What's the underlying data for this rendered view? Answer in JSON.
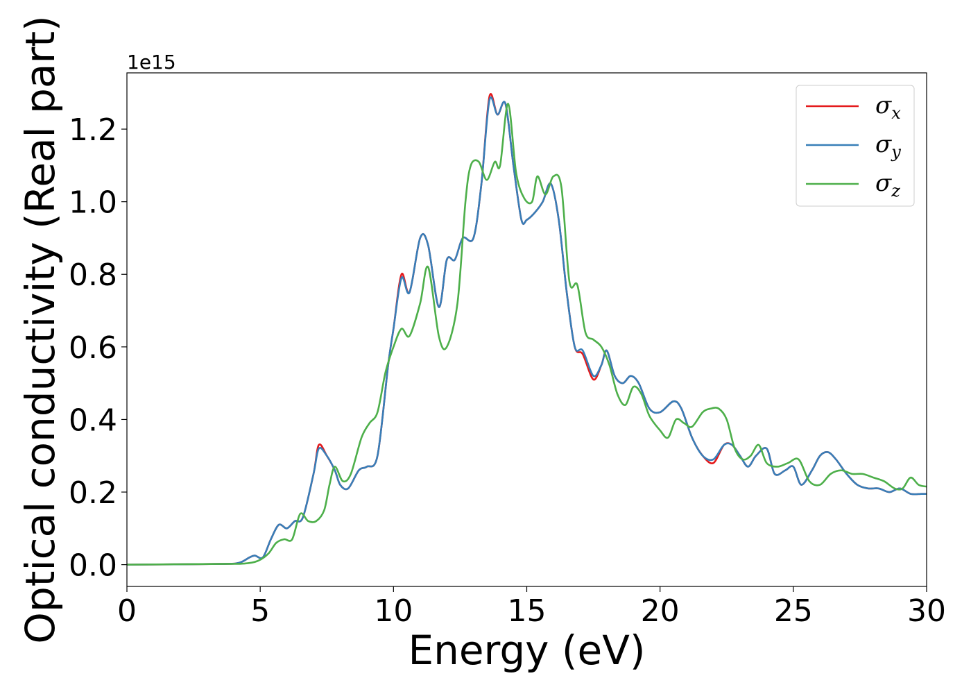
{
  "chart_data": {
    "type": "line",
    "title": "",
    "xlabel": "Energy (eV)",
    "ylabel": "Optical conductivity (Real part)",
    "y_offset_label": "1e15",
    "xlim": [
      0,
      30
    ],
    "ylim": [
      -0.06,
      1.355
    ],
    "x_ticks": [
      0,
      5,
      10,
      15,
      20,
      25,
      30
    ],
    "x_tick_labels": [
      "0",
      "5",
      "10",
      "15",
      "20",
      "25",
      "30"
    ],
    "y_ticks": [
      0.0,
      0.2,
      0.4,
      0.6,
      0.8,
      1.0,
      1.2
    ],
    "y_tick_labels": [
      "0.0",
      "0.2",
      "0.4",
      "0.6",
      "0.8",
      "1.0",
      "1.2"
    ],
    "grid": false,
    "legend_position": "top-right",
    "series": [
      {
        "name": "σ_x",
        "legend_base": "σ",
        "legend_sub": "x",
        "color": "#e41a1c",
        "x": [
          0,
          3.5,
          4.2,
          4.6,
          4.8,
          5.1,
          5.4,
          5.7,
          6.0,
          6.3,
          6.6,
          7.0,
          7.2,
          7.5,
          7.8,
          8.0,
          8.3,
          8.7,
          9.0,
          9.4,
          9.8,
          10.0,
          10.3,
          10.6,
          11.0,
          11.3,
          11.7,
          12.0,
          12.3,
          12.6,
          13.0,
          13.3,
          13.6,
          13.9,
          14.2,
          14.5,
          14.8,
          15.0,
          15.3,
          15.6,
          15.9,
          16.2,
          16.5,
          16.8,
          17.1,
          17.5,
          17.8,
          18.0,
          18.3,
          18.6,
          18.9,
          19.2,
          19.6,
          20.0,
          20.5,
          20.8,
          21.2,
          21.6,
          22.0,
          22.4,
          22.7,
          23.0,
          23.3,
          23.6,
          24.0,
          24.3,
          24.7,
          25.0,
          25.3,
          25.7,
          26.0,
          26.3,
          26.6,
          27.0,
          27.4,
          27.8,
          28.2,
          28.6,
          29.0,
          29.4,
          29.8,
          30.0
        ],
        "values": [
          0.0,
          0.002,
          0.005,
          0.02,
          0.025,
          0.02,
          0.07,
          0.11,
          0.1,
          0.12,
          0.13,
          0.25,
          0.33,
          0.3,
          0.26,
          0.22,
          0.21,
          0.26,
          0.27,
          0.3,
          0.55,
          0.65,
          0.8,
          0.75,
          0.9,
          0.88,
          0.71,
          0.84,
          0.84,
          0.9,
          0.9,
          1.05,
          1.29,
          1.24,
          1.27,
          1.1,
          0.95,
          0.95,
          0.97,
          1.0,
          1.05,
          0.95,
          0.75,
          0.6,
          0.58,
          0.51,
          0.55,
          0.59,
          0.52,
          0.5,
          0.52,
          0.5,
          0.43,
          0.42,
          0.45,
          0.43,
          0.35,
          0.3,
          0.28,
          0.33,
          0.33,
          0.3,
          0.27,
          0.3,
          0.32,
          0.25,
          0.26,
          0.27,
          0.22,
          0.26,
          0.3,
          0.31,
          0.29,
          0.25,
          0.22,
          0.21,
          0.21,
          0.2,
          0.21,
          0.195,
          0.195,
          0.195
        ]
      },
      {
        "name": "σ_y",
        "legend_base": "σ",
        "legend_sub": "y",
        "color": "#377eb8",
        "x": [
          0,
          3.5,
          4.2,
          4.6,
          4.8,
          5.1,
          5.4,
          5.7,
          6.0,
          6.3,
          6.6,
          7.0,
          7.2,
          7.5,
          7.8,
          8.0,
          8.3,
          8.7,
          9.0,
          9.4,
          9.8,
          10.0,
          10.3,
          10.6,
          11.0,
          11.3,
          11.7,
          12.0,
          12.3,
          12.6,
          13.0,
          13.3,
          13.6,
          13.9,
          14.2,
          14.5,
          14.8,
          15.0,
          15.3,
          15.6,
          15.9,
          16.2,
          16.5,
          16.8,
          17.1,
          17.5,
          17.8,
          18.0,
          18.3,
          18.6,
          18.9,
          19.2,
          19.6,
          20.0,
          20.5,
          20.8,
          21.2,
          21.6,
          22.0,
          22.4,
          22.7,
          23.0,
          23.3,
          23.6,
          24.0,
          24.3,
          24.7,
          25.0,
          25.3,
          25.7,
          26.0,
          26.3,
          26.6,
          27.0,
          27.4,
          27.8,
          28.2,
          28.6,
          29.0,
          29.4,
          29.8,
          30.0
        ],
        "values": [
          0.0,
          0.002,
          0.005,
          0.02,
          0.025,
          0.02,
          0.07,
          0.11,
          0.1,
          0.12,
          0.13,
          0.25,
          0.32,
          0.3,
          0.26,
          0.22,
          0.21,
          0.26,
          0.27,
          0.3,
          0.55,
          0.65,
          0.79,
          0.75,
          0.9,
          0.88,
          0.71,
          0.84,
          0.84,
          0.9,
          0.9,
          1.05,
          1.28,
          1.24,
          1.27,
          1.1,
          0.95,
          0.95,
          0.97,
          1.0,
          1.05,
          0.95,
          0.75,
          0.6,
          0.59,
          0.52,
          0.55,
          0.59,
          0.52,
          0.5,
          0.52,
          0.5,
          0.43,
          0.42,
          0.45,
          0.43,
          0.35,
          0.3,
          0.29,
          0.33,
          0.33,
          0.3,
          0.27,
          0.3,
          0.32,
          0.25,
          0.26,
          0.27,
          0.22,
          0.26,
          0.3,
          0.31,
          0.29,
          0.25,
          0.22,
          0.21,
          0.21,
          0.2,
          0.21,
          0.195,
          0.195,
          0.195
        ]
      },
      {
        "name": "σ_z",
        "legend_base": "σ",
        "legend_sub": "z",
        "color": "#4daf4a",
        "x": [
          0,
          3.5,
          4.4,
          4.9,
          5.3,
          5.6,
          5.9,
          6.2,
          6.5,
          6.8,
          7.1,
          7.4,
          7.6,
          7.8,
          8.1,
          8.4,
          8.8,
          9.1,
          9.4,
          9.7,
          10.0,
          10.3,
          10.6,
          11.0,
          11.3,
          11.7,
          12.0,
          12.4,
          12.7,
          12.9,
          13.2,
          13.5,
          13.8,
          14.0,
          14.3,
          14.6,
          14.9,
          15.2,
          15.4,
          15.7,
          16.0,
          16.3,
          16.6,
          16.9,
          17.2,
          17.5,
          17.8,
          18.1,
          18.4,
          18.7,
          19.0,
          19.3,
          19.6,
          20.0,
          20.3,
          20.6,
          20.9,
          21.2,
          21.6,
          21.9,
          22.2,
          22.5,
          22.8,
          23.1,
          23.4,
          23.7,
          24.0,
          24.4,
          24.8,
          25.2,
          25.6,
          26.0,
          26.4,
          26.8,
          27.2,
          27.6,
          28.0,
          28.4,
          28.8,
          29.1,
          29.4,
          29.7,
          30.0
        ],
        "values": [
          0.0,
          0.002,
          0.003,
          0.01,
          0.03,
          0.06,
          0.07,
          0.07,
          0.14,
          0.12,
          0.12,
          0.15,
          0.22,
          0.27,
          0.23,
          0.25,
          0.35,
          0.39,
          0.42,
          0.53,
          0.6,
          0.65,
          0.63,
          0.72,
          0.82,
          0.63,
          0.6,
          0.72,
          1.0,
          1.1,
          1.11,
          1.06,
          1.11,
          1.1,
          1.27,
          1.08,
          1.01,
          1.0,
          1.07,
          1.02,
          1.07,
          1.04,
          0.78,
          0.77,
          0.64,
          0.62,
          0.6,
          0.55,
          0.47,
          0.44,
          0.49,
          0.47,
          0.41,
          0.37,
          0.35,
          0.4,
          0.39,
          0.38,
          0.42,
          0.43,
          0.43,
          0.4,
          0.32,
          0.29,
          0.3,
          0.33,
          0.28,
          0.27,
          0.28,
          0.29,
          0.23,
          0.22,
          0.25,
          0.26,
          0.25,
          0.25,
          0.24,
          0.23,
          0.21,
          0.21,
          0.24,
          0.22,
          0.215
        ]
      }
    ]
  }
}
